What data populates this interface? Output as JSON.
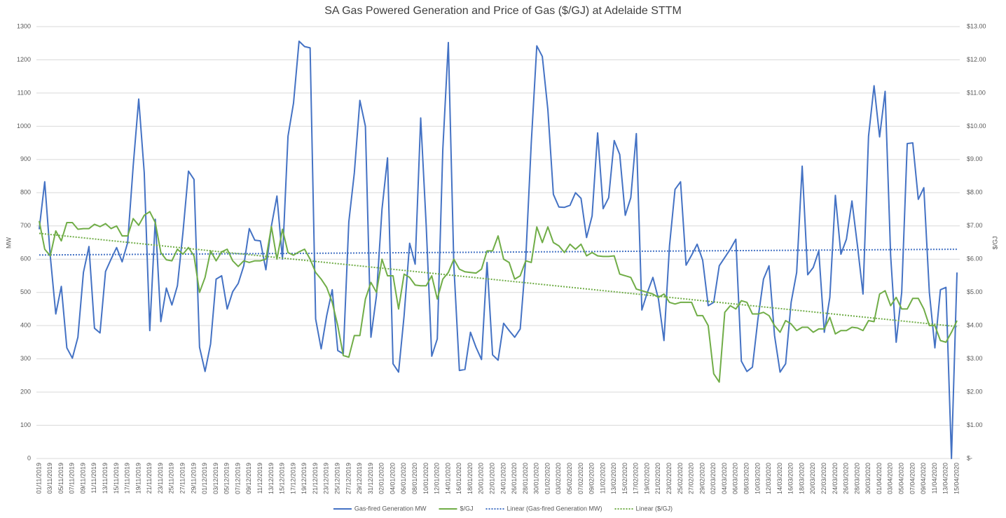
{
  "chart_data": {
    "type": "line",
    "title": "SA Gas Powered Generation and Price of Gas ($/GJ) at Adelaide STTM",
    "y_label": "MW",
    "y2_label": "$/GJ",
    "grid": true,
    "legend": "bottom",
    "categories": [
      "01/11/2019",
      null,
      "03/11/2019",
      null,
      "05/11/2019",
      null,
      "07/11/2019",
      null,
      "09/11/2019",
      null,
      "11/11/2019",
      null,
      "13/11/2019",
      null,
      "15/11/2019",
      null,
      "17/11/2019",
      null,
      "19/11/2019",
      null,
      "21/11/2019",
      null,
      "23/11/2019",
      null,
      "25/11/2019",
      null,
      "27/11/2019",
      null,
      "29/11/2019",
      null,
      "01/12/2019",
      null,
      "03/12/2019",
      null,
      "05/12/2019",
      null,
      "07/12/2019",
      null,
      "09/12/2019",
      null,
      "11/12/2019",
      null,
      "13/12/2019",
      null,
      "15/12/2019",
      null,
      "17/12/2019",
      null,
      "19/12/2019",
      null,
      "21/12/2019",
      null,
      "23/12/2019",
      null,
      "25/12/2019",
      null,
      "27/12/2019",
      null,
      "29/12/2019",
      null,
      "31/12/2019",
      null,
      "02/01/2020",
      null,
      "04/01/2020",
      null,
      "06/01/2020",
      null,
      "08/01/2020",
      null,
      "10/01/2020",
      null,
      "12/01/2020",
      null,
      "14/01/2020",
      null,
      "16/01/2020",
      null,
      "18/01/2020",
      null,
      "20/01/2020",
      null,
      "22/01/2020",
      null,
      "24/01/2020",
      null,
      "26/01/2020",
      null,
      "28/01/2020",
      null,
      "30/01/2020",
      null,
      "01/02/2020",
      null,
      "03/02/2020",
      null,
      "05/02/2020",
      null,
      "07/02/2020",
      null,
      "09/02/2020",
      null,
      "11/02/2020",
      null,
      "13/02/2020",
      null,
      "15/02/2020",
      null,
      "17/02/2020",
      null,
      "19/02/2020",
      null,
      "21/02/2020",
      null,
      "23/02/2020",
      null,
      "25/02/2020",
      null,
      "27/02/2020",
      null,
      "29/02/2020",
      null,
      "02/03/2020",
      null,
      "04/03/2020",
      null,
      "06/03/2020",
      null,
      "08/03/2020",
      null,
      "10/03/2020",
      null,
      "12/03/2020",
      null,
      "14/03/2020",
      null,
      "16/03/2020",
      null,
      "18/03/2020",
      null,
      "20/03/2020",
      null,
      "22/03/2020",
      null,
      "24/03/2020",
      null,
      "26/03/2020",
      null,
      "28/03/2020",
      null,
      "30/03/2020",
      null,
      "01/04/2020",
      null,
      "03/04/2020",
      null,
      "05/04/2020",
      null,
      "07/04/2020",
      null,
      "09/04/2020",
      null,
      "11/04/2020",
      null,
      "13/04/2020",
      null,
      "15/04/2020"
    ],
    "ylim": [
      0,
      1300
    ],
    "yticks": [
      0,
      100,
      200,
      300,
      400,
      500,
      600,
      700,
      800,
      900,
      1000,
      1100,
      1200,
      1300
    ],
    "y2lim": [
      0,
      13
    ],
    "y2ticks": [
      {
        "value": 0,
        "label": "$-"
      },
      {
        "value": 1,
        "label": "$1.00"
      },
      {
        "value": 2,
        "label": "$2.00"
      },
      {
        "value": 3,
        "label": "$3.00"
      },
      {
        "value": 4,
        "label": "$4.00"
      },
      {
        "value": 5,
        "label": "$5.00"
      },
      {
        "value": 6,
        "label": "$6.00"
      },
      {
        "value": 7,
        "label": "$7.00"
      },
      {
        "value": 8,
        "label": "$8.00"
      },
      {
        "value": 9,
        "label": "$9.00"
      },
      {
        "value": 10,
        "label": "$10.00"
      },
      {
        "value": 11,
        "label": "$11.00"
      },
      {
        "value": 12,
        "label": "$12.00"
      },
      {
        "value": 13,
        "label": "$13.00"
      }
    ],
    "series": [
      {
        "name": "Gas-fired Generation MW",
        "color": "#4472c4",
        "axis": "y",
        "trendline": {
          "name": "Linear (Gas-fired Generation MW)",
          "type": "linear"
        },
        "values": [
          690,
          833,
          610,
          435,
          518,
          333,
          302,
          365,
          560,
          638,
          392,
          378,
          563,
          600,
          635,
          592,
          650,
          880,
          1082,
          860,
          385,
          720,
          412,
          513,
          462,
          520,
          680,
          865,
          840,
          335,
          262,
          345,
          540,
          550,
          450,
          502,
          527,
          580,
          692,
          657,
          655,
          568,
          700,
          790,
          600,
          970,
          1070,
          1256,
          1240,
          1236,
          420,
          330,
          430,
          508,
          325,
          315,
          712,
          860,
          1078,
          1000,
          365,
          490,
          750,
          905,
          285,
          260,
          430,
          648,
          585,
          1025,
          700,
          308,
          360,
          930,
          1252,
          580,
          265,
          268,
          380,
          335,
          298,
          590,
          312,
          296,
          407,
          385,
          365,
          390,
          600,
          950,
          1242,
          1210,
          1050,
          795,
          757,
          756,
          762,
          800,
          783,
          665,
          730,
          980,
          752,
          785,
          957,
          915,
          732,
          785,
          978,
          447,
          500,
          545,
          480,
          355,
          640,
          810,
          833,
          582,
          612,
          645,
          597,
          460,
          470,
          580,
          605,
          630,
          660,
          293,
          262,
          275,
          420,
          540,
          580,
          370,
          260,
          285,
          470,
          560,
          880,
          553,
          575,
          625,
          380,
          485,
          792,
          615,
          660,
          775,
          640,
          495,
          970,
          1122,
          968,
          1105,
          610,
          350,
          500,
          948,
          950,
          780,
          815,
          500,
          333,
          508,
          515,
          0,
          560
        ]
      },
      {
        "name": "$/GJ",
        "color": "#70ad47",
        "axis": "y2",
        "trendline": {
          "name": "Linear ($/GJ)",
          "type": "linear"
        },
        "values": [
          7.15,
          6.3,
          6.1,
          6.85,
          6.55,
          7.1,
          7.1,
          6.9,
          6.92,
          6.92,
          7.05,
          6.98,
          7.07,
          6.92,
          7.0,
          6.7,
          6.7,
          7.22,
          7.02,
          7.32,
          7.43,
          7.1,
          6.2,
          5.98,
          5.95,
          6.3,
          6.15,
          6.35,
          6.1,
          5.0,
          5.45,
          6.25,
          5.95,
          6.22,
          6.3,
          5.95,
          5.78,
          5.95,
          5.9,
          5.95,
          5.95,
          6.0,
          6.98,
          6.0,
          6.9,
          6.2,
          6.12,
          6.22,
          6.3,
          6.0,
          5.6,
          5.4,
          5.15,
          4.7,
          4.0,
          3.1,
          3.05,
          3.7,
          3.7,
          4.8,
          5.3,
          5.0,
          6.0,
          5.5,
          5.5,
          4.5,
          5.55,
          5.45,
          5.22,
          5.2,
          5.2,
          5.5,
          4.8,
          5.4,
          5.6,
          6.0,
          5.7,
          5.62,
          5.6,
          5.58,
          5.7,
          6.25,
          6.25,
          6.7,
          6.0,
          5.9,
          5.4,
          5.5,
          5.95,
          5.9,
          6.97,
          6.5,
          6.97,
          6.5,
          6.4,
          6.2,
          6.45,
          6.3,
          6.45,
          6.1,
          6.2,
          6.1,
          6.08,
          6.08,
          6.1,
          5.55,
          5.5,
          5.45,
          5.1,
          5.05,
          5.0,
          4.95,
          4.85,
          4.95,
          4.7,
          4.65,
          4.7,
          4.7,
          4.7,
          4.3,
          4.3,
          4.0,
          2.55,
          2.3,
          4.4,
          4.6,
          4.5,
          4.75,
          4.7,
          4.35,
          4.35,
          4.4,
          4.3,
          4.0,
          3.8,
          4.15,
          4.05,
          3.85,
          3.95,
          3.95,
          3.8,
          3.9,
          3.9,
          4.25,
          3.75,
          3.85,
          3.85,
          3.95,
          3.93,
          3.85,
          4.15,
          4.12,
          4.95,
          5.05,
          4.6,
          4.85,
          4.5,
          4.5,
          4.82,
          4.82,
          4.5,
          4.0,
          4.0,
          3.55,
          3.5,
          3.8,
          4.15
        ]
      }
    ]
  }
}
